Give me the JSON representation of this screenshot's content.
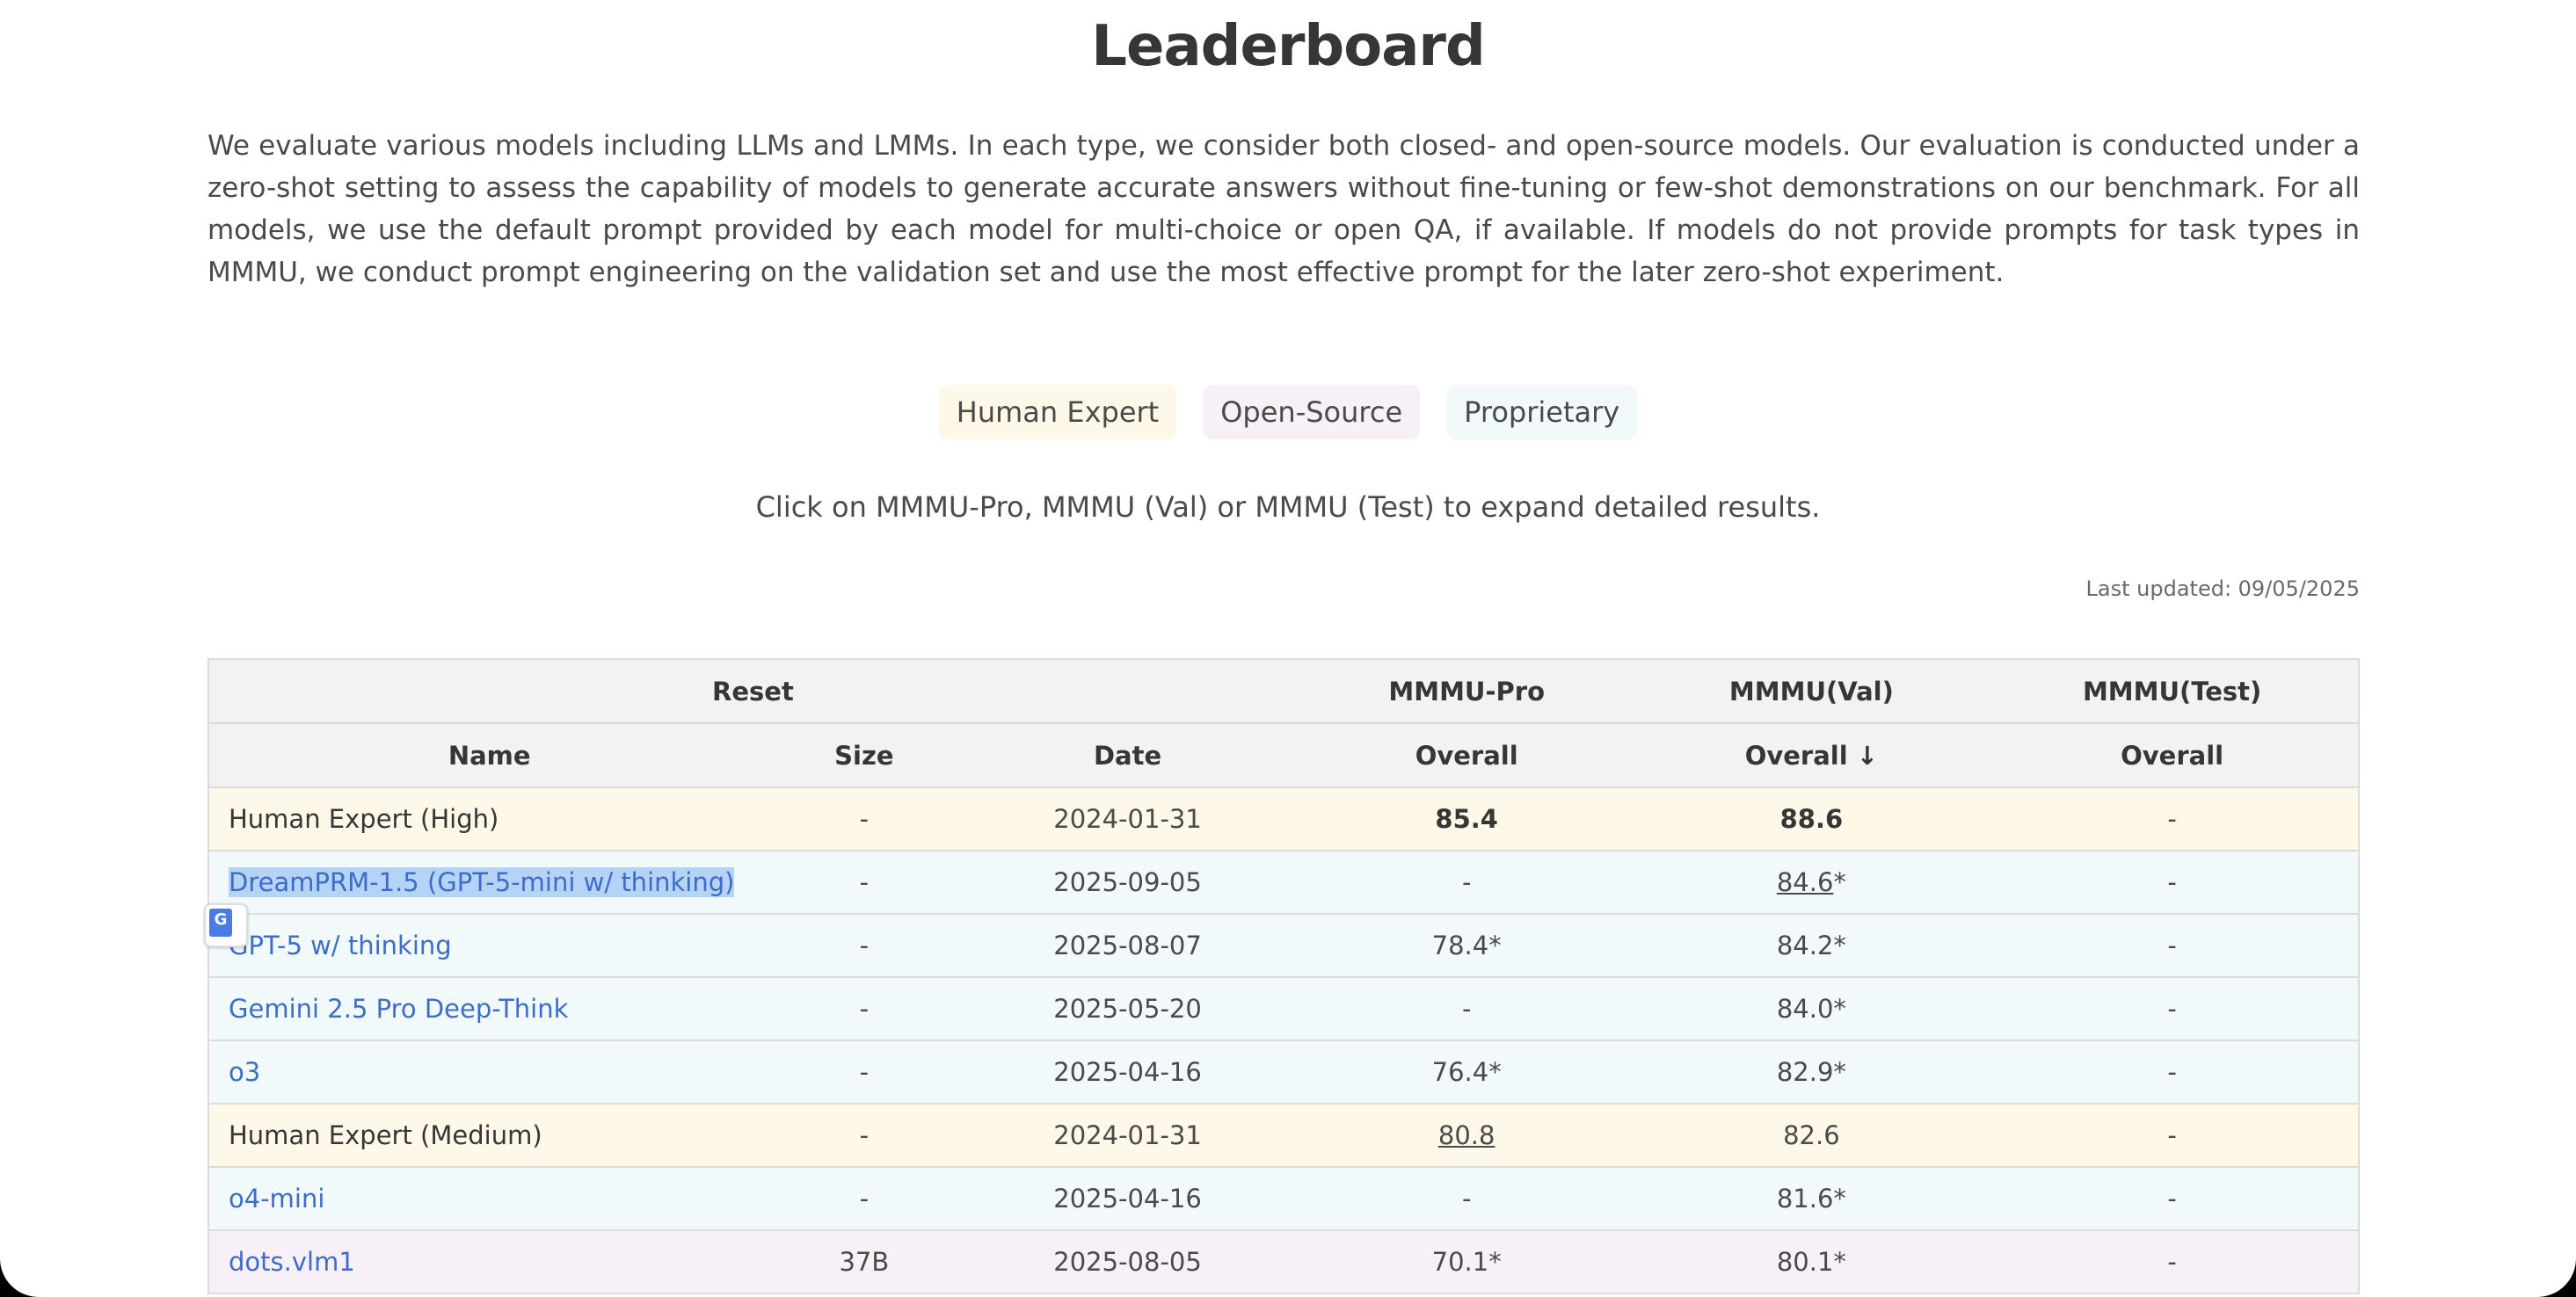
{
  "title": "Leaderboard",
  "intro": "We evaluate various models including LLMs and LMMs. In each type, we consider both closed- and open-source models. Our evaluation is conducted under a zero-shot setting to assess the capability of models to generate accurate answers without fine-tuning or few-shot demonstrations on our benchmark. For all models, we use the default prompt provided by each model for multi-choice or open QA, if available. If models do not provide prompts for task types in MMMU, we conduct prompt engineering on the validation set and use the most effective prompt for the later zero-shot experiment.",
  "legend": [
    {
      "label": "Human Expert",
      "color": "#fdf8e8"
    },
    {
      "label": "Open-Source",
      "color": "#f7f0f7"
    },
    {
      "label": "Proprietary",
      "color": "#f2f9fb"
    }
  ],
  "hint": "Click on MMMU-Pro, MMMU (Val) or MMMU (Test) to expand detailed results.",
  "last_updated": "Last updated: 09/05/2025",
  "table": {
    "group_headers": [
      "Reset",
      "MMMU-Pro",
      "MMMU(Val)",
      "MMMU(Test)"
    ],
    "headers": [
      "Name",
      "Size",
      "Date",
      "Overall",
      "Overall ↓",
      "Overall"
    ],
    "rows": [
      {
        "type": "human",
        "name": "Human Expert (High)",
        "size": "-",
        "date": "2024-01-31",
        "pro": "85.4",
        "val": "88.6",
        "test": "-"
      },
      {
        "type": "prop",
        "name": "DreamPRM-1.5 (GPT-5-mini w/ thinking)",
        "size": "-",
        "date": "2025-09-05",
        "pro": "-",
        "val": "84.6",
        "val_suffix": "*",
        "test": "-"
      },
      {
        "type": "prop",
        "name": "GPT-5 w/ thinking",
        "size": "-",
        "date": "2025-08-07",
        "pro": "78.4*",
        "val": "84.2*",
        "test": "-"
      },
      {
        "type": "prop",
        "name": "Gemini 2.5 Pro Deep-Think",
        "size": "-",
        "date": "2025-05-20",
        "pro": "-",
        "val": "84.0*",
        "test": "-"
      },
      {
        "type": "prop",
        "name": "o3",
        "size": "-",
        "date": "2025-04-16",
        "pro": "76.4*",
        "val": "82.9*",
        "test": "-"
      },
      {
        "type": "human",
        "name": "Human Expert (Medium)",
        "size": "-",
        "date": "2024-01-31",
        "pro": "80.8",
        "val": "82.6",
        "test": "-"
      },
      {
        "type": "prop",
        "name": "o4-mini",
        "size": "-",
        "date": "2025-04-16",
        "pro": "-",
        "val": "81.6*",
        "test": "-"
      },
      {
        "type": "open",
        "name": "dots.vlm1",
        "size": "37B",
        "date": "2025-08-05",
        "pro": "70.1*",
        "val": "80.1*",
        "test": "-"
      }
    ]
  },
  "translate_icon": "google-translate-icon"
}
